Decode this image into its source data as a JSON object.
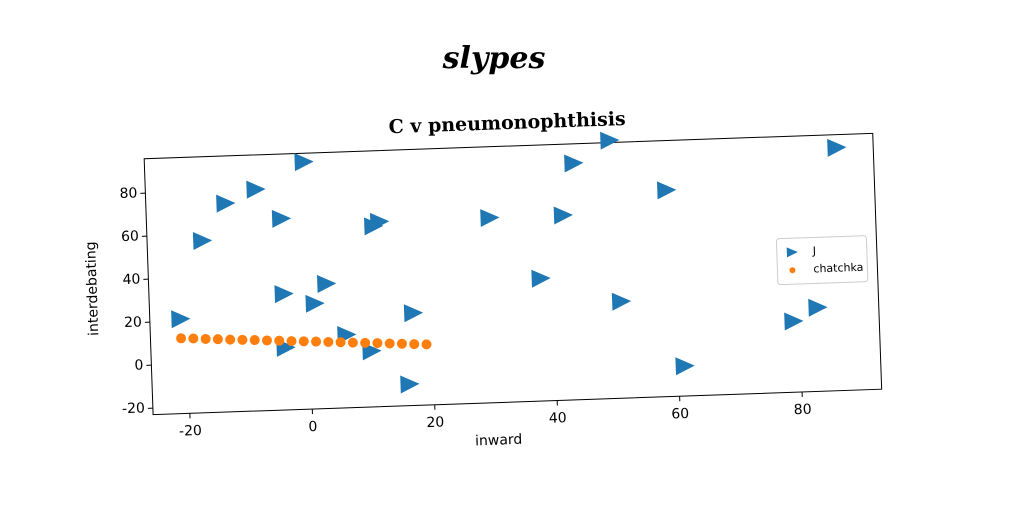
{
  "heading": "slypes",
  "chart_data": {
    "type": "scatter",
    "title": "C v pneumonophthisis",
    "xlabel": "inward",
    "ylabel": "interdebating",
    "xlim": [
      -26,
      93
    ],
    "ylim": [
      -23,
      96
    ],
    "xticks": [
      -20,
      0,
      20,
      40,
      60,
      80
    ],
    "yticks": [
      -20,
      0,
      20,
      40,
      60,
      80
    ],
    "legend": "center right",
    "series": [
      {
        "name": "J",
        "color": "#1f77b4",
        "marker": "triangle-right",
        "x": [
          -21,
          -17,
          -13,
          -8,
          -4,
          -4,
          0,
          1,
          3,
          -4,
          6,
          10,
          11,
          12,
          16,
          17,
          30,
          38,
          42,
          44,
          50,
          51,
          59,
          61,
          79,
          83,
          87
        ],
        "y": [
          21,
          57,
          74,
          80,
          66,
          31,
          92,
          26,
          35,
          6,
          11,
          3,
          61,
          63,
          -13,
          20,
          63,
          34,
          63,
          87,
          97,
          22,
          73,
          -9,
          10,
          16,
          90
        ]
      },
      {
        "name": "chatchka",
        "color": "#ff7f0e",
        "marker": "circle",
        "x": [
          -21,
          -19,
          -17,
          -15,
          -13,
          -11,
          -9,
          -7,
          -5,
          -3,
          -1,
          1,
          3,
          5,
          7,
          9,
          11,
          13,
          15,
          17,
          19
        ],
        "y": [
          12.0,
          11.7,
          11.3,
          11.0,
          10.6,
          10.3,
          10.0,
          9.6,
          9.3,
          8.9,
          8.6,
          8.3,
          7.9,
          7.6,
          7.2,
          6.9,
          6.6,
          6.2,
          5.9,
          5.5,
          5.2
        ]
      }
    ]
  }
}
